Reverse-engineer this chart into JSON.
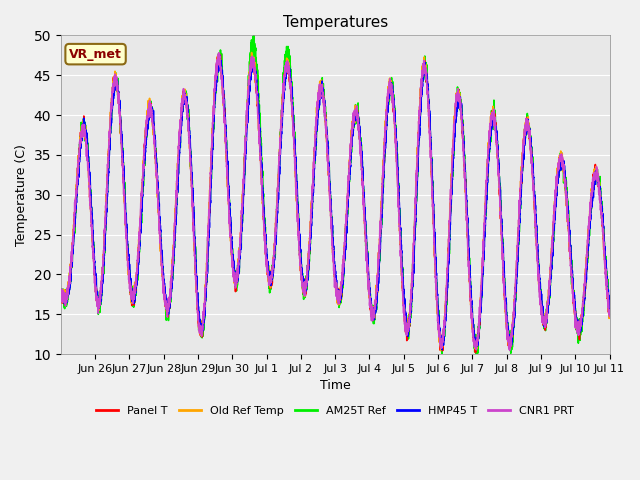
{
  "title": "Temperatures",
  "xlabel": "Time",
  "ylabel": "Temperature (C)",
  "ylim": [
    10,
    50
  ],
  "annotation_text": "VR_met",
  "annotation_bg": "#ffffcc",
  "annotation_border": "#8b6914",
  "annotation_text_color": "#8b0000",
  "bg_color": "#e8e8e8",
  "fig_bg_color": "#f0f0f0",
  "series": {
    "Panel T": {
      "color": "#ff0000",
      "lw": 1.2
    },
    "Old Ref Temp": {
      "color": "#ffa500",
      "lw": 1.2
    },
    "AM25T Ref": {
      "color": "#00ee00",
      "lw": 1.2
    },
    "HMP45 T": {
      "color": "#0000ff",
      "lw": 1.2
    },
    "CNR1 PRT": {
      "color": "#cc44cc",
      "lw": 1.2
    }
  },
  "start_day": 25.0,
  "end_day": 41.0,
  "xtick_positions": [
    26,
    27,
    28,
    29,
    30,
    31,
    32,
    33,
    34,
    35,
    36,
    37,
    38,
    39,
    40,
    41
  ],
  "xtick_labels": [
    "Jun 26",
    "Jun 27",
    "Jun 28",
    "Jun 29",
    "Jun 30",
    "Jul 1",
    "Jul 2",
    "Jul 3",
    "Jul 4",
    "Jul 5",
    "Jul 6",
    "Jul 7",
    "Jul 8",
    "Jul 9",
    "Jul 10",
    "Jul 11"
  ]
}
